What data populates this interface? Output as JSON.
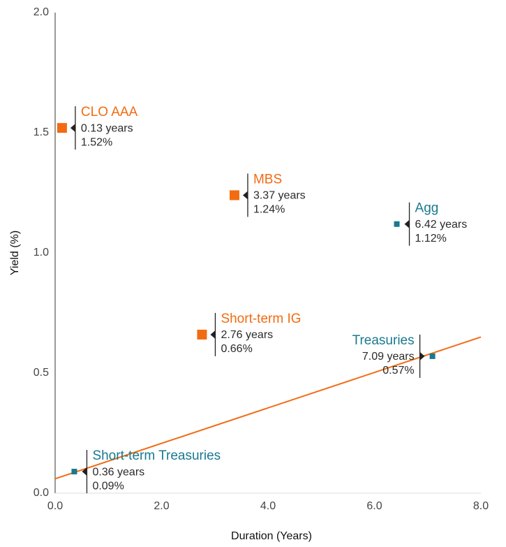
{
  "chart_data": {
    "type": "scatter",
    "xlabel": "Duration (Years)",
    "ylabel": "Yield (%)",
    "xlim": [
      0,
      8
    ],
    "ylim": [
      0,
      2
    ],
    "xticks": [
      {
        "value": 0,
        "label": "0.0"
      },
      {
        "value": 2,
        "label": "2.0"
      },
      {
        "value": 4,
        "label": "4.0"
      },
      {
        "value": 6,
        "label": "6.0"
      },
      {
        "value": 8,
        "label": "8.0"
      }
    ],
    "yticks": [
      {
        "value": 0,
        "label": "0.0"
      },
      0.5,
      {
        "value": 1,
        "label": "1.0"
      },
      1.5,
      {
        "value": 2,
        "label": "2.0"
      }
    ],
    "marker": "square",
    "series": [
      {
        "color": "#f26b12",
        "names": [
          "CLO AAA",
          "MBS",
          "Short-term IG"
        ],
        "x": [
          0.13,
          3.37,
          2.76
        ],
        "y": [
          1.52,
          1.24,
          0.66
        ],
        "x_labels": [
          "0.13 years",
          "3.37 years",
          "2.76 years"
        ],
        "y_labels": [
          "1.52%",
          "1.24%",
          "0.66%"
        ]
      },
      {
        "color": "#19798f",
        "names": [
          "Agg",
          "Treasuries",
          "Short-term Treasuries"
        ],
        "x": [
          6.42,
          7.09,
          0.36
        ],
        "y": [
          1.12,
          0.57,
          0.09
        ],
        "x_labels": [
          "6.42 years",
          "7.09 years",
          "0.36 years"
        ],
        "y_labels": [
          "1.12%",
          "0.57%",
          "0.09%"
        ]
      }
    ],
    "trendline": {
      "color": "#f26b12",
      "x": [
        0,
        8
      ],
      "y": [
        0.06,
        0.65
      ]
    }
  }
}
